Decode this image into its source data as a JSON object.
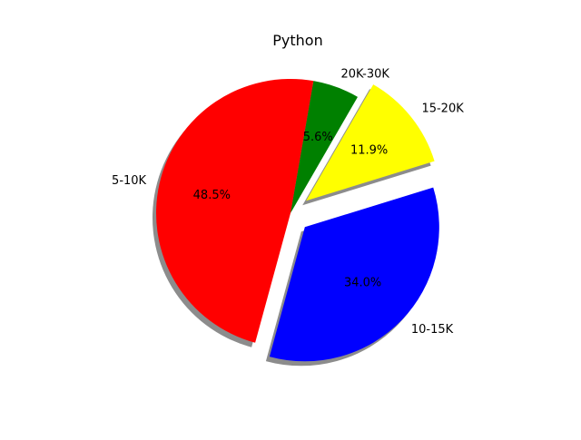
{
  "chart_data": {
    "type": "pie",
    "title": "Python",
    "categories": [
      "5-10K",
      "10-15K",
      "15-20K",
      "20K-30K"
    ],
    "values": [
      48.5,
      34.0,
      11.9,
      5.6
    ],
    "percent_labels": [
      "48.5%",
      "34.0%",
      "11.9%",
      "5.6%"
    ],
    "colors": [
      "#ff0000",
      "#0000ff",
      "#ffff00",
      "#008000"
    ],
    "exploded": [
      false,
      true,
      true,
      false
    ],
    "shadow": true,
    "legend": "none"
  }
}
